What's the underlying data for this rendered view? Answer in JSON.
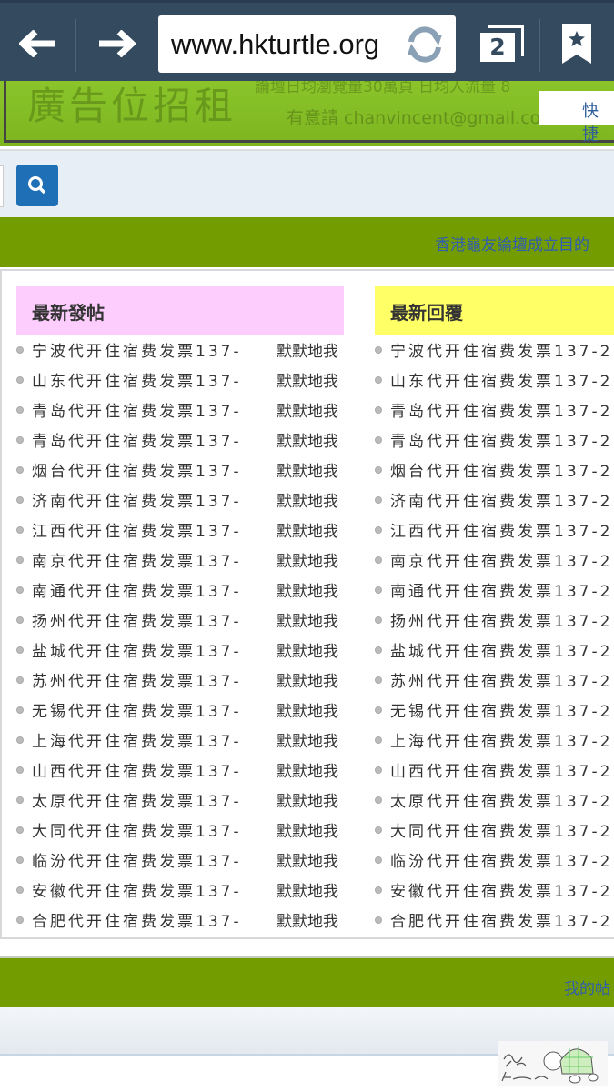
{
  "browser": {
    "url": "www.hkturtle.org",
    "tab_count": "2"
  },
  "banner": {
    "title": "廣告位招租",
    "line1": "論壇日均瀏覽量30萬頁  日均人流量 8",
    "line2": "有意請 chanvincent@gmail.com洽",
    "quick_link": "快捷"
  },
  "nav_text": "香港龜友論壇成立目的",
  "latest_posts": {
    "title": "最新發帖",
    "header_color": "#fccdfd",
    "items": [
      {
        "title": "宁波代开住宿费发票137-",
        "author": "默默地我"
      },
      {
        "title": "山东代开住宿费发票137-",
        "author": "默默地我"
      },
      {
        "title": "青岛代开住宿费发票137-",
        "author": "默默地我"
      },
      {
        "title": "青岛代开住宿费发票137-",
        "author": "默默地我"
      },
      {
        "title": "烟台代开住宿费发票137-",
        "author": "默默地我"
      },
      {
        "title": "济南代开住宿费发票137-",
        "author": "默默地我"
      },
      {
        "title": "江西代开住宿费发票137-",
        "author": "默默地我"
      },
      {
        "title": "南京代开住宿费发票137-",
        "author": "默默地我"
      },
      {
        "title": "南通代开住宿费发票137-",
        "author": "默默地我"
      },
      {
        "title": "扬州代开住宿费发票137-",
        "author": "默默地我"
      },
      {
        "title": "盐城代开住宿费发票137-",
        "author": "默默地我"
      },
      {
        "title": "苏州代开住宿费发票137-",
        "author": "默默地我"
      },
      {
        "title": "无锡代开住宿费发票137-",
        "author": "默默地我"
      },
      {
        "title": "上海代开住宿费发票137-",
        "author": "默默地我"
      },
      {
        "title": "山西代开住宿费发票137-",
        "author": "默默地我"
      },
      {
        "title": "太原代开住宿费发票137-",
        "author": "默默地我"
      },
      {
        "title": "大同代开住宿费发票137-",
        "author": "默默地我"
      },
      {
        "title": "临汾代开住宿费发票137-",
        "author": "默默地我"
      },
      {
        "title": "安徽代开住宿费发票137-",
        "author": "默默地我"
      },
      {
        "title": "合肥代开住宿费发票137-",
        "author": "默默地我"
      }
    ]
  },
  "latest_replies": {
    "title": "最新回覆",
    "header_color": "#ffff66",
    "items": [
      "宁波代开住宿费发票137-2",
      "山东代开住宿费发票137-2",
      "青岛代开住宿费发票137-2",
      "青岛代开住宿费发票137-2",
      "烟台代开住宿费发票137-2",
      "济南代开住宿费发票137-2",
      "江西代开住宿费发票137-2",
      "南京代开住宿费发票137-2",
      "南通代开住宿费发票137-2",
      "扬州代开住宿费发票137-2",
      "盐城代开住宿费发票137-2",
      "苏州代开住宿费发票137-2",
      "无锡代开住宿费发票137-2",
      "上海代开住宿费发票137-2",
      "山西代开住宿费发票137-2",
      "太原代开住宿费发票137-2",
      "大同代开住宿费发票137-2",
      "临汾代开住宿费发票137-2",
      "安徽代开住宿费发票137-2",
      "合肥代开住宿费发票137-2"
    ]
  },
  "footer": {
    "link": "我的帖",
    "logo_text": "龜友 Hk turtle"
  },
  "colors": {
    "toolbar": "#344a5f",
    "green": "#739c00",
    "link": "#2f5db0"
  }
}
